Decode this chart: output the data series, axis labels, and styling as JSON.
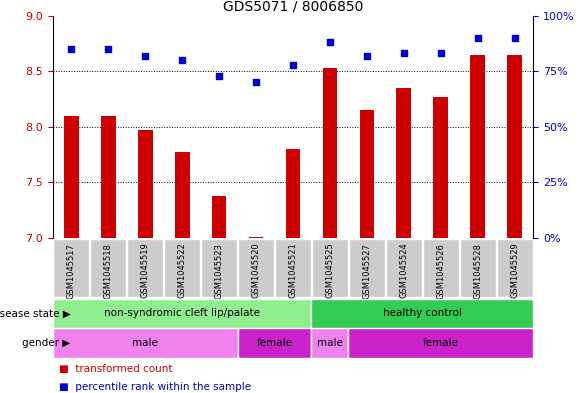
{
  "title": "GDS5071 / 8006850",
  "samples": [
    "GSM1045517",
    "GSM1045518",
    "GSM1045519",
    "GSM1045522",
    "GSM1045523",
    "GSM1045520",
    "GSM1045521",
    "GSM1045525",
    "GSM1045527",
    "GSM1045524",
    "GSM1045526",
    "GSM1045528",
    "GSM1045529"
  ],
  "transformed_count": [
    8.1,
    8.1,
    7.97,
    7.77,
    7.38,
    7.01,
    7.8,
    8.53,
    8.15,
    8.35,
    8.27,
    8.65,
    8.65
  ],
  "percentile_rank": [
    85,
    85,
    82,
    80,
    73,
    70,
    78,
    88,
    82,
    83,
    83,
    90,
    90
  ],
  "ylim_left": [
    7.0,
    9.0
  ],
  "ylim_right": [
    0,
    100
  ],
  "yticks_left": [
    7.0,
    7.5,
    8.0,
    8.5,
    9.0
  ],
  "yticks_right": [
    0,
    25,
    50,
    75,
    100
  ],
  "bar_color": "#cc0000",
  "dot_color": "#0000cc",
  "bar_bottom": 7.0,
  "disease_state_groups": [
    {
      "label": "non-syndromic cleft lip/palate",
      "start": 0,
      "end": 7,
      "color": "#90ee90"
    },
    {
      "label": "healthy control",
      "start": 7,
      "end": 13,
      "color": "#33cc55"
    }
  ],
  "gender_groups": [
    {
      "label": "male",
      "start": 0,
      "end": 5,
      "color": "#ee82ee"
    },
    {
      "label": "female",
      "start": 5,
      "end": 7,
      "color": "#cc22cc"
    },
    {
      "label": "male",
      "start": 7,
      "end": 8,
      "color": "#ee82ee"
    },
    {
      "label": "female",
      "start": 8,
      "end": 13,
      "color": "#cc22cc"
    }
  ],
  "disease_state_label": "disease state",
  "gender_label": "gender",
  "legend_items": [
    "transformed count",
    "percentile rank within the sample"
  ],
  "tick_label_color_left": "#cc0000",
  "tick_label_color_right": "#0000cc",
  "bg_color_sample": "#cccccc",
  "bar_width": 0.4
}
